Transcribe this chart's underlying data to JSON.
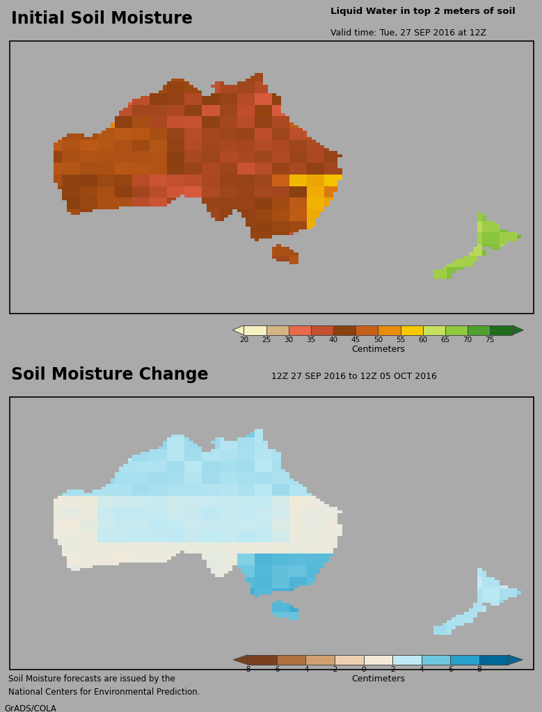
{
  "title1": "Initial Soil Moisture",
  "title2": "Soil Moisture Change",
  "subtitle1_line1": "Liquid Water in top 2 meters of soil",
  "subtitle1_line2": "Valid time: Tue, 27 SEP 2016 at 12Z",
  "subtitle2": "12Z 27 SEP 2016 to 12Z 05 OCT 2016",
  "colorbar1_ticks": [
    "20",
    "25",
    "30",
    "35",
    "40",
    "45",
    "50",
    "55",
    "60",
    "65",
    "70",
    "75"
  ],
  "colorbar1_label": "Centimeters",
  "colorbar1_colors": [
    "#f5f0c0",
    "#d4b483",
    "#e8684a",
    "#c45030",
    "#8b4010",
    "#c86018",
    "#e88c0a",
    "#f5c800",
    "#c8e060",
    "#90c840",
    "#50a030",
    "#1e6e1e"
  ],
  "colorbar2_ticks": [
    "-8",
    "-6",
    "-4",
    "-2",
    "0",
    "2",
    "4",
    "6",
    "8"
  ],
  "colorbar2_label": "Centimeters",
  "colorbar2_colors": [
    "#7b4020",
    "#b07040",
    "#d0a070",
    "#ecd0b0",
    "#f5ead8",
    "#c0eaf5",
    "#70c8e0",
    "#28a0cc",
    "#006896"
  ],
  "bg_color": "#aaaaaa",
  "footer_text1": "Soil Moisture forecasts are issued by the",
  "footer_text2": "National Centers for Environmental Prediction.",
  "footer_brand": "GrADS/COLA",
  "map_extent": [
    108,
    180,
    -52,
    -5
  ],
  "aus_lon_min": 113.0,
  "aus_lon_max": 154.0,
  "aus_lat_min": -43.6,
  "aus_lat_max": -10.5,
  "nz_ni_lon_min": 172.0,
  "nz_ni_lon_max": 178.5,
  "nz_ni_lat_min": -41.5,
  "nz_ni_lat_max": -34.0,
  "nz_si_lon_min": 166.0,
  "nz_si_lon_max": 172.5,
  "nz_si_lat_min": -47.0,
  "nz_si_lat_max": -40.0
}
